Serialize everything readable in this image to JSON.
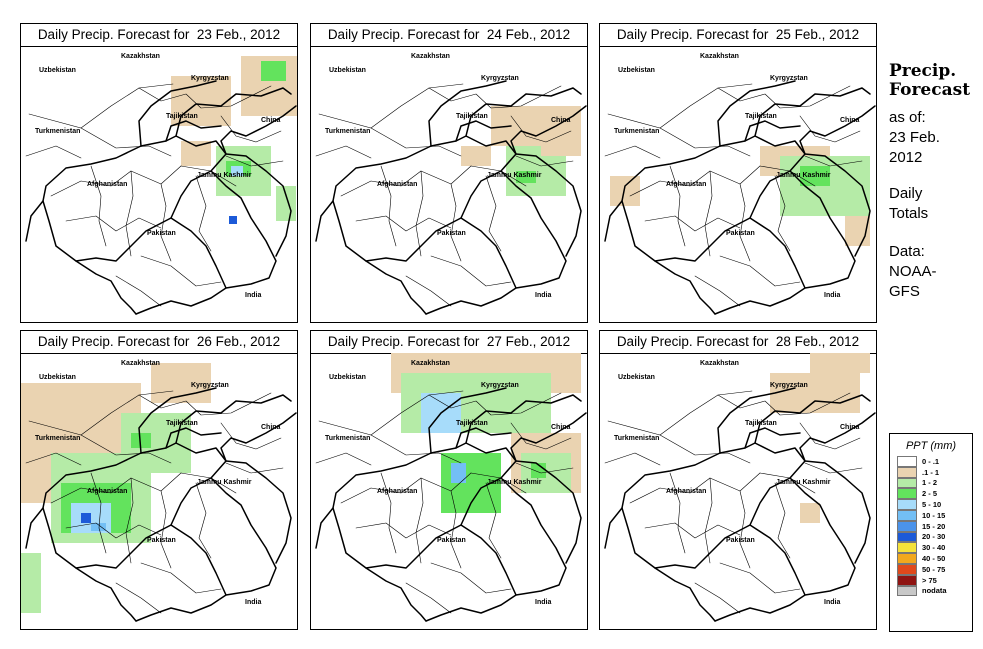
{
  "panels": [
    {
      "title": "Daily Precip. Forecast for  23 Feb., 2012"
    },
    {
      "title": "Daily Precip. Forecast for  24 Feb., 2012"
    },
    {
      "title": "Daily Precip. Forecast for  25 Feb., 2012"
    },
    {
      "title": "Daily Precip. Forecast for  26 Feb., 2012"
    },
    {
      "title": "Daily Precip. Forecast for  27 Feb., 2012"
    },
    {
      "title": "Daily Precip. Forecast for  28 Feb., 2012"
    }
  ],
  "place_labels": {
    "kazakhstan": "Kazakhstan",
    "uzbekistan": "Uzbekistan",
    "kyrgyzstan": "Kyrgyzstan",
    "tajikistan": "Tajikistan",
    "turkmenistan": "Turkmenistan",
    "china": "China",
    "afghanistan": "Afghanistan",
    "jammu_kashmir": "Jammu Kashmir",
    "pakistan": "Pakistan",
    "india": "India"
  },
  "sidebar": {
    "title_line1": "Precip.",
    "title_line2": "Forecast",
    "asof_line1": "as of:",
    "asof_line2": "23 Feb.",
    "asof_line3": "2012",
    "daily_line1": "Daily",
    "daily_line2": "Totals",
    "data_line1": "Data:",
    "data_line2": "NOAA-",
    "data_line3": "GFS"
  },
  "legend": {
    "title": "PPT (mm)",
    "items": [
      {
        "label": "0 - .1",
        "color": "#ffffff"
      },
      {
        "label": ".1 - 1",
        "color": "#ead3b1"
      },
      {
        "label": "1 - 2",
        "color": "#b5eba7"
      },
      {
        "label": "2 - 5",
        "color": "#63e35d"
      },
      {
        "label": "5 - 10",
        "color": "#a7dcfa"
      },
      {
        "label": "10 - 15",
        "color": "#73bff5"
      },
      {
        "label": "15 - 20",
        "color": "#4b93ea"
      },
      {
        "label": "20 - 30",
        "color": "#1c5ad8"
      },
      {
        "label": "30 - 40",
        "color": "#f5e23a"
      },
      {
        "label": "40 - 50",
        "color": "#f2a81d"
      },
      {
        "label": "50 - 75",
        "color": "#e0491b"
      },
      {
        "label": "> 75",
        "color": "#8f1412"
      },
      {
        "label": "nodata",
        "color": "#c8c8c8"
      }
    ]
  }
}
